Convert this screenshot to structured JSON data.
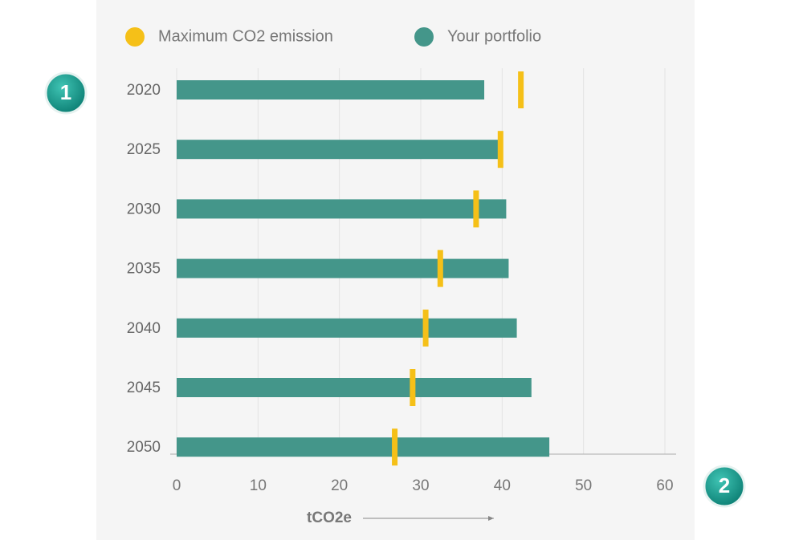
{
  "chart_data": {
    "type": "bar",
    "orientation": "horizontal",
    "categories": [
      "2020",
      "2025",
      "2030",
      "2035",
      "2040",
      "2045",
      "2050"
    ],
    "series": [
      {
        "name": "Maximum CO2 emission",
        "color": "#f5c018",
        "mark": "tick",
        "values": [
          42.3,
          39.8,
          36.8,
          32.4,
          30.6,
          29,
          26.8
        ]
      },
      {
        "name": "Your portfolio",
        "color": "#44968a",
        "mark": "bar",
        "values": [
          37.8,
          39.5,
          40.5,
          40.8,
          41.8,
          43.6,
          45.8
        ]
      }
    ],
    "xlim": [
      0,
      60
    ],
    "xticks": [
      0,
      10,
      20,
      30,
      40,
      50,
      60
    ],
    "grid": true,
    "xlabel": "tCO2e",
    "legend": "top",
    "annotations": [
      "1",
      "2"
    ]
  }
}
